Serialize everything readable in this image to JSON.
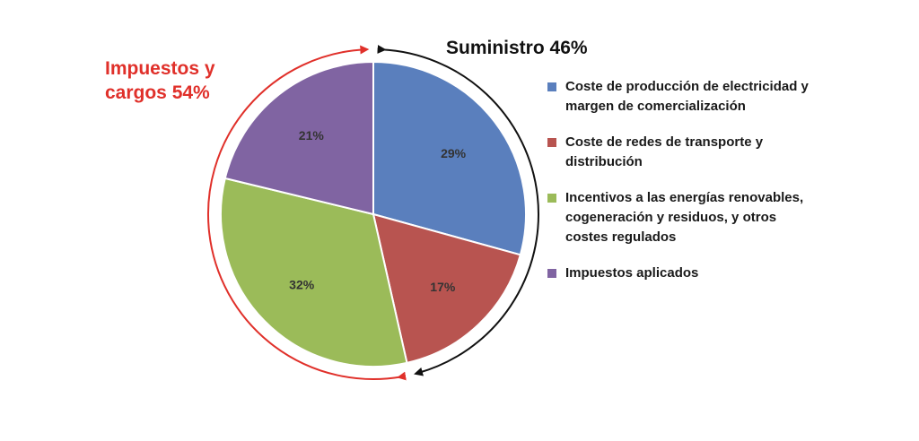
{
  "chart_data": {
    "type": "pie",
    "categories": [
      "Coste de producción de electricidad y margen de comercialización",
      "Coste de redes de transporte y distribución",
      "Incentivos a las energías renovables, cogeneración y residuos, y otros costes regulados",
      "Impuestos aplicados"
    ],
    "values": [
      29,
      17,
      32,
      21
    ],
    "data_labels": [
      "29%",
      "17%",
      "32%",
      "21%"
    ],
    "colors": [
      "#5a7fbd",
      "#b85450",
      "#9bbb59",
      "#8064a2"
    ],
    "legend_position": "right",
    "annotations": [
      {
        "text": "Suministro 46%",
        "color": "#111111"
      },
      {
        "text": "Impuestos y cargos 54%",
        "color": "#e0302a"
      }
    ]
  }
}
